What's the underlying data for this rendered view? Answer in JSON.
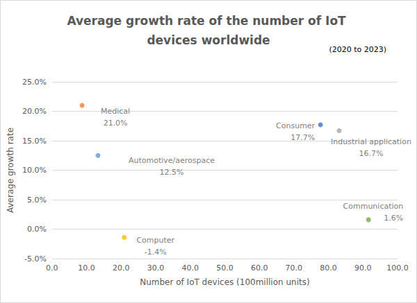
{
  "chart_data": {
    "type": "scatter",
    "title": "Average growth rate of the number of IoT devices worldwide",
    "subtitle": "(2020 to 2023)",
    "x_label": "Number of IoT devices (100million units)",
    "y_label": "Average growth rate",
    "labels": [
      "Medical",
      "Automotive/aerospace",
      "Computer",
      "Consumer",
      "Industrial application",
      "Communication"
    ],
    "x": [
      8.7,
      13.3,
      20.9,
      77.7,
      83.1,
      91.6
    ],
    "values": [
      21.0,
      12.5,
      -1.4,
      17.7,
      16.7,
      1.6
    ],
    "value_labels": [
      "21.0%",
      "12.5%",
      "-1.4%",
      "17.7%",
      "16.7%",
      "1.6%"
    ],
    "colors": [
      "#ed7d31",
      "#5b9bd5",
      "#ffc000",
      "#4472c4",
      "#a5a5a5",
      "#70ad47"
    ],
    "xlim": [
      0,
      100
    ],
    "xticks": [
      {
        "value": 0,
        "label": "0.0"
      },
      {
        "value": 10,
        "label": "10.0"
      },
      {
        "value": 20,
        "label": "20.0"
      },
      {
        "value": 30,
        "label": "30.0"
      },
      {
        "value": 40,
        "label": "40.0"
      },
      {
        "value": 50,
        "label": "50.0"
      },
      {
        "value": 60,
        "label": "60.0"
      },
      {
        "value": 70,
        "label": "70.0"
      },
      {
        "value": 80,
        "label": "80.0"
      },
      {
        "value": 90,
        "label": "90.0"
      },
      {
        "value": 100,
        "label": "100.0"
      }
    ],
    "ylim": [
      -5,
      25
    ],
    "yticks": [
      {
        "value": -5,
        "label": "-5.0%"
      },
      {
        "value": 0,
        "label": "0.0%"
      },
      {
        "value": 5,
        "label": "5.0%"
      },
      {
        "value": 10,
        "label": "10.0%"
      },
      {
        "value": 15,
        "label": "15.0%"
      },
      {
        "value": 20,
        "label": "20.0%"
      },
      {
        "value": 25,
        "label": "25.0%"
      }
    ],
    "grid": true,
    "data_labels": true,
    "marker": "circle"
  }
}
